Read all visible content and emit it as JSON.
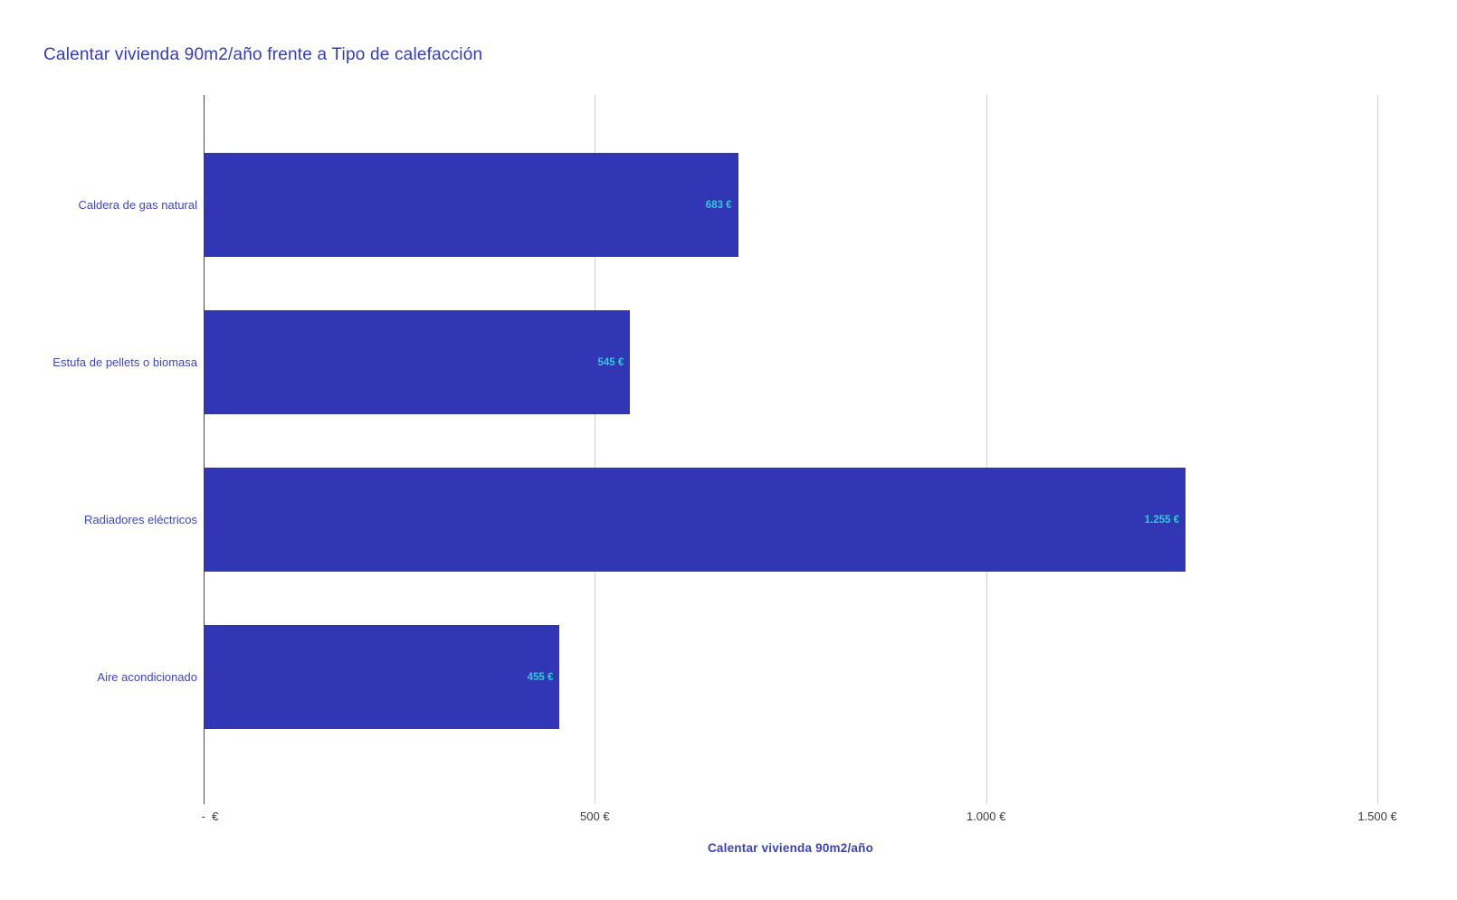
{
  "title": "Calentar vivienda 90m2/año frente a Tipo de calefacción",
  "colors": {
    "bar_fill": "#3036B4",
    "value_label": "#30CBD8",
    "title_text": "#333CC1",
    "category_text": "#4046C4",
    "tick_text": "#3B3B3B",
    "gridline": "#D2D2D2",
    "axis_line": "#474747",
    "axis_title_text": "#3A43BE",
    "background": "#FFFFFF"
  },
  "chart_data": {
    "type": "bar",
    "orientation": "horizontal",
    "title": "Calentar vivienda 90m2/año frente a Tipo de calefacción",
    "categories": [
      "Caldera de gas natural",
      "Estufa de pellets o biomasa",
      "Radiadores eléctricos",
      "Aire acondicionado"
    ],
    "values": [
      683,
      545,
      1255,
      455
    ],
    "value_labels": [
      "683 €",
      "545 €",
      "1.255 €",
      "455 €"
    ],
    "xlabel": "Calentar vivienda 90m2/año",
    "xlim": [
      0,
      1500
    ],
    "x_ticks": [
      0,
      500,
      1000,
      1500
    ],
    "x_tick_labels": [
      "-  €",
      "500 €",
      "1.000 €",
      "1.500 €"
    ],
    "grid": true,
    "legend": false,
    "value_labels_position": "inside-end"
  }
}
